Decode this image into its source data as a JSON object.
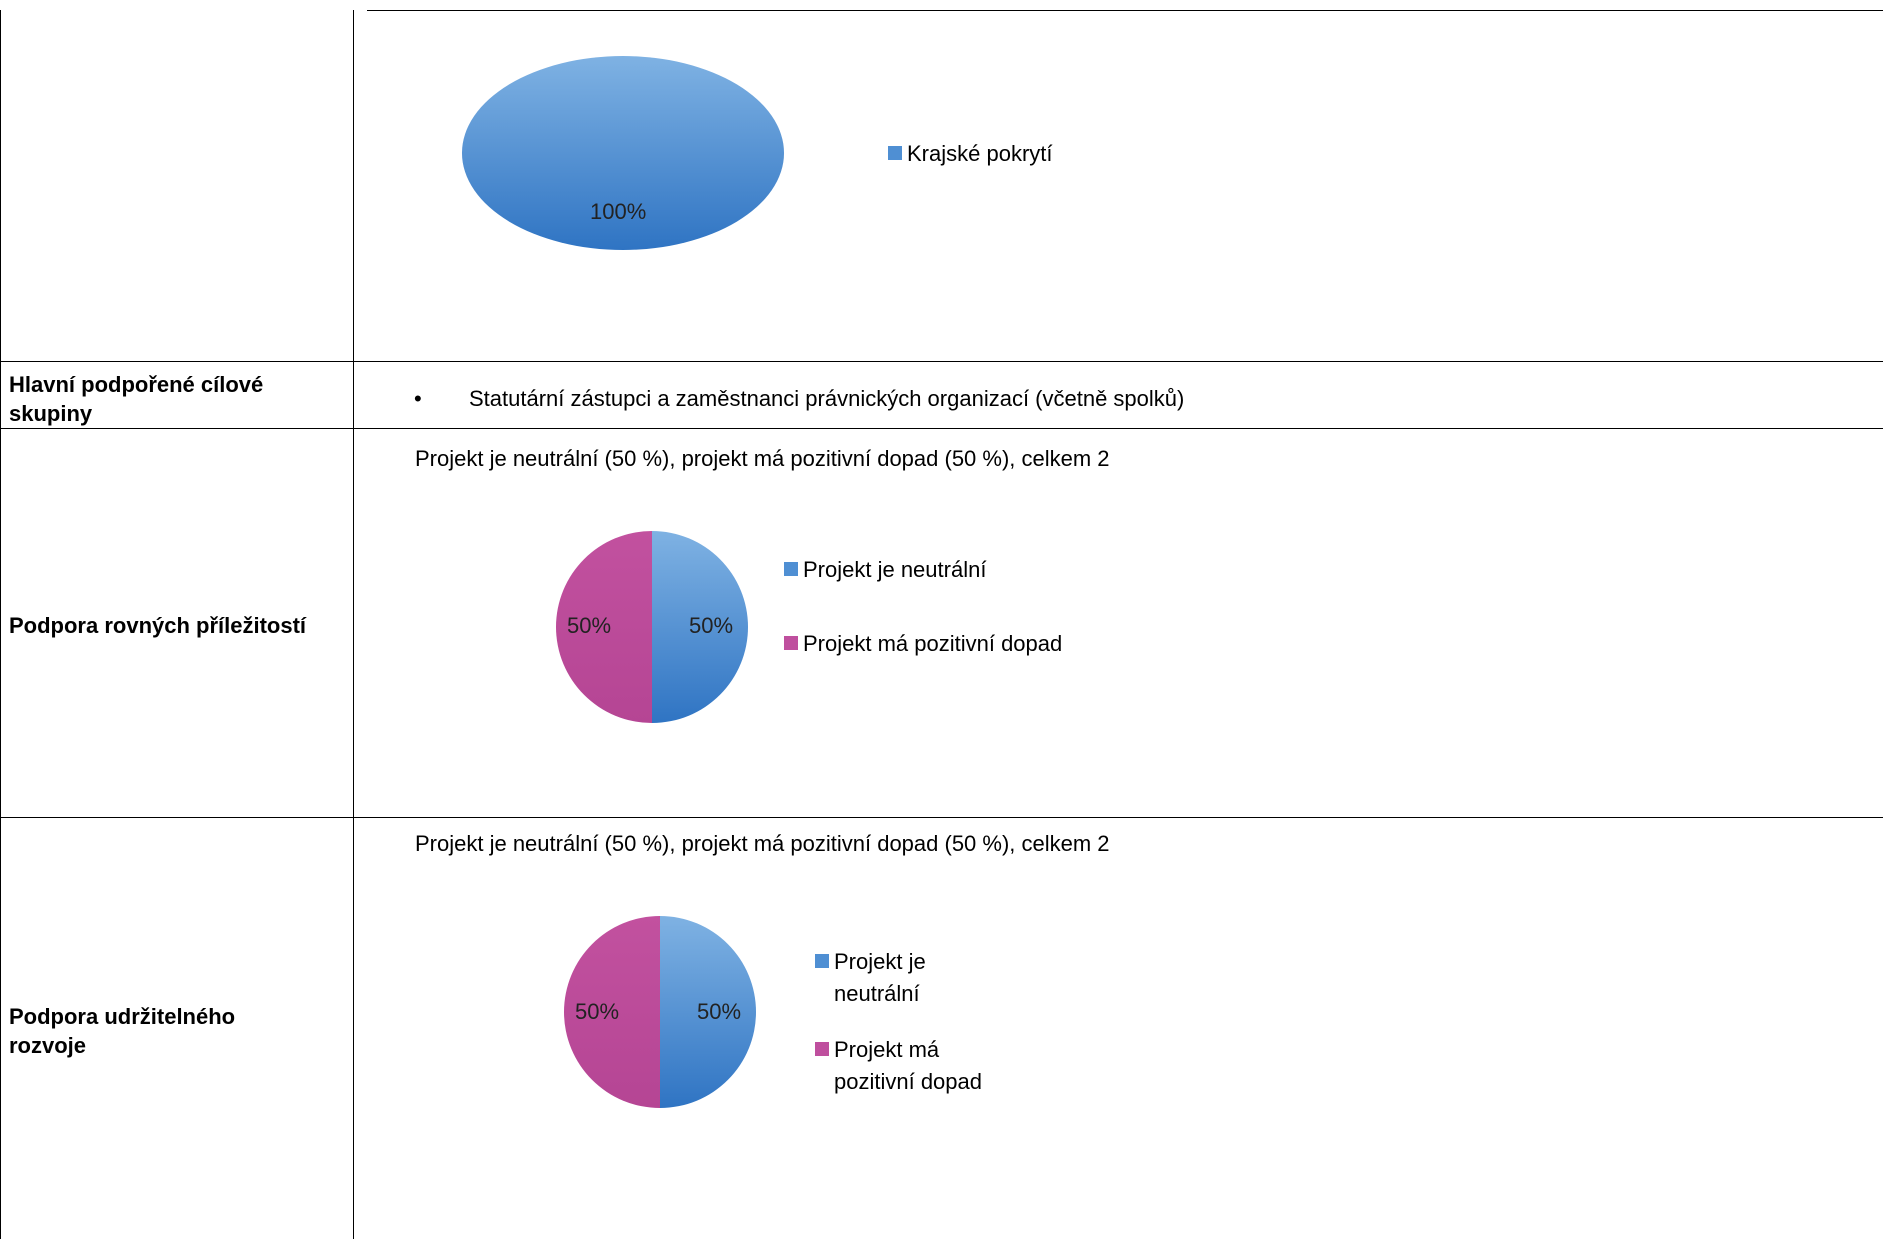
{
  "colors": {
    "blue": "#4f8fd3",
    "blue_light": "#7db0e0",
    "blue_dark": "#2f6fba",
    "magenta": "#bf4f9e",
    "magenta_dark": "#a23b84"
  },
  "rows": [
    {
      "label": "",
      "chart": {
        "legend": [
          "Krajské pokrytí"
        ],
        "labels": [
          "100%"
        ]
      }
    },
    {
      "label": "Hlavní podpořené cílové skupiny",
      "bullet": "•",
      "text": "Statutární zástupci a zaměstnanci právnických organizací (včetně spolků)"
    },
    {
      "label": "Podpora rovných příležitostí",
      "summary": "Projekt je neutrální (50 %), projekt má pozitivní dopad (50 %), celkem 2",
      "chart": {
        "legend": [
          "Projekt je neutrální",
          "Projekt má pozitivní dopad"
        ],
        "labels": [
          "50%",
          "50%"
        ]
      }
    },
    {
      "label": "Podpora udržitelného rozvoje",
      "summary": "Projekt je neutrální (50 %), projekt má pozitivní dopad (50 %), celkem 2",
      "chart": {
        "legend": [
          "Projekt je neutrální",
          "Projekt má pozitivní dopad"
        ],
        "labels": [
          "50%",
          "50%"
        ]
      }
    }
  ],
  "chart_data": [
    {
      "type": "pie",
      "categories": [
        "Krajské pokrytí"
      ],
      "values": [
        100
      ],
      "data_labels": [
        "100%"
      ],
      "legend": "right"
    },
    {
      "type": "pie",
      "categories": [
        "Projekt je neutrální",
        "Projekt má pozitivní dopad"
      ],
      "values": [
        50,
        50
      ],
      "data_labels": [
        "50%",
        "50%"
      ],
      "legend": "right"
    },
    {
      "type": "pie",
      "categories": [
        "Projekt je neutrální",
        "Projekt má pozitivní dopad"
      ],
      "values": [
        50,
        50
      ],
      "data_labels": [
        "50%",
        "50%"
      ],
      "legend": "right"
    }
  ]
}
